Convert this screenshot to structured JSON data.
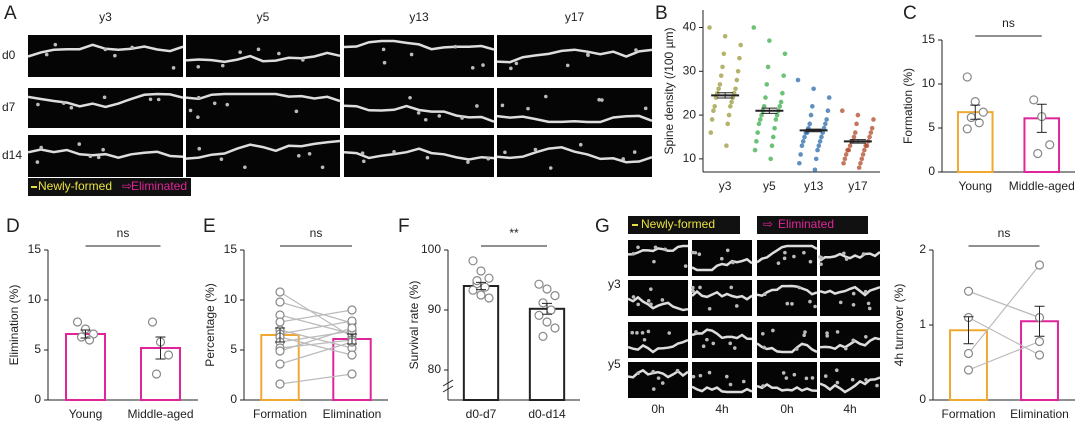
{
  "image_panels": {
    "A": {
      "label": "A",
      "columns": [
        "y3",
        "y5",
        "y13",
        "y17"
      ],
      "rows": [
        "d0",
        "d7",
        "d14"
      ],
      "legend": [
        "Newly-formed",
        "Eliminated"
      ]
    },
    "G": {
      "label": "G",
      "legend": [
        "Newly-formed",
        "Eliminated"
      ],
      "rows": [
        "y3",
        "y5"
      ],
      "columns": [
        "0h",
        "4h",
        "0h",
        "4h"
      ]
    }
  },
  "chart_data": [
    {
      "type": "strip",
      "panel": "B",
      "ylabel": "Spine density (/100 µm)",
      "categories": [
        "y3",
        "y5",
        "y13",
        "y17"
      ],
      "groups": [
        {
          "color": "#9a9a3c",
          "mean": 24.5,
          "error": 0.6,
          "values": [
            40,
            38,
            36,
            34,
            33,
            31,
            30,
            29,
            28,
            27,
            26,
            26,
            25,
            25,
            24,
            24,
            23,
            22,
            22,
            21,
            20,
            19,
            18,
            16,
            13
          ]
        },
        {
          "color": "#3aae4a",
          "mean": 21,
          "error": 0.6,
          "values": [
            40,
            37,
            34,
            31,
            29,
            27,
            25,
            24,
            23,
            22,
            22,
            21,
            21,
            20,
            20,
            19,
            19,
            18,
            17,
            16,
            15,
            14,
            13,
            12,
            10
          ]
        },
        {
          "color": "#2a6aa8",
          "mean": 16.5,
          "error": 0.3,
          "values": [
            28,
            26,
            24,
            22,
            21,
            20,
            19,
            18,
            18,
            17,
            17,
            16,
            16,
            16,
            15,
            15,
            14,
            14,
            13,
            13,
            12,
            11,
            10,
            9,
            7.5
          ]
        },
        {
          "color": "#b04a2a",
          "mean": 14,
          "error": 0.4,
          "values": [
            21,
            20,
            19,
            18,
            17,
            16,
            16,
            15,
            15,
            14,
            14,
            14,
            13,
            13,
            13,
            12,
            12,
            12,
            11,
            11,
            10,
            10,
            9,
            9,
            8
          ]
        }
      ],
      "ylim": [
        7,
        44
      ],
      "yticks": [
        10,
        20,
        30,
        40
      ]
    },
    {
      "type": "bar",
      "panel": "C",
      "ylabel": "Formation (%)",
      "categories": [
        "Young",
        "Middle-aged"
      ],
      "colors": [
        "#f0a830",
        "#e0259a"
      ],
      "values": [
        6.8,
        6.1
      ],
      "errors": [
        0.8,
        1.6
      ],
      "points": [
        [
          10.8,
          8.0,
          6.8,
          6.2,
          5.6,
          4.9
        ],
        [
          8.2,
          6.3,
          3.1,
          2.1
        ]
      ],
      "ylim": [
        0,
        15
      ],
      "yticks": [
        0,
        5,
        10,
        15
      ],
      "annotation": "ns"
    },
    {
      "type": "bar",
      "panel": "D",
      "ylabel": "Elimination (%)",
      "categories": [
        "Young",
        "Middle-aged"
      ],
      "colors": [
        "#e0259a",
        "#e0259a"
      ],
      "values": [
        6.6,
        5.2
      ],
      "errors": [
        0.4,
        1.1
      ],
      "points": [
        [
          7.8,
          7.1,
          6.6,
          6.3,
          6.0
        ],
        [
          7.8,
          5.8,
          4.5,
          2.6
        ]
      ],
      "ylim": [
        0,
        15
      ],
      "yticks": [
        0,
        5,
        10,
        15
      ],
      "annotation": "ns"
    },
    {
      "type": "bar",
      "panel": "E",
      "ylabel": "Percentage (%)",
      "categories": [
        "Formation",
        "Elimination"
      ],
      "colors": [
        "#f0a830",
        "#e0259a"
      ],
      "values": [
        6.5,
        6.1
      ],
      "errors": [
        0.7,
        0.5
      ],
      "paired": true,
      "points": [
        [
          10.8,
          9.8,
          8.5,
          7.8,
          7.0,
          6.6,
          6.3,
          5.8,
          5.2,
          4.9,
          3.6,
          1.6
        ],
        [
          6.3,
          7.7,
          6.6,
          9.0,
          5.2,
          7.9,
          4.5,
          6.9,
          6.0,
          7.2,
          5.8,
          2.6
        ]
      ],
      "ylim": [
        0,
        15
      ],
      "yticks": [
        0,
        5,
        10,
        15
      ],
      "annotation": "ns"
    },
    {
      "type": "bar",
      "panel": "F",
      "ylabel": "Survival rate (%)",
      "categories": [
        "d0-d7",
        "d0-d14"
      ],
      "colors": [
        "#222222",
        "#222222"
      ],
      "values": [
        94,
        90.2
      ],
      "errors": [
        0.6,
        0.9
      ],
      "points": [
        [
          98.2,
          96.5,
          95.3,
          94.4,
          93.8,
          93.3,
          92.5,
          92.0,
          94.9
        ],
        [
          94.3,
          93.5,
          92.4,
          91.2,
          90.0,
          89.1,
          88.0,
          87.0,
          85.6
        ]
      ],
      "ylim": [
        75,
        100
      ],
      "yticks": [
        80,
        90,
        100
      ],
      "axis_break": true,
      "annotation": "**"
    },
    {
      "type": "bar",
      "ylabel": "4h turnover (%)",
      "categories": [
        "Formation",
        "Elimination"
      ],
      "colors": [
        "#f0a830",
        "#e0259a"
      ],
      "values": [
        0.93,
        1.05
      ],
      "errors": [
        0.18,
        0.2
      ],
      "paired": true,
      "points": [
        [
          1.45,
          1.1,
          0.62,
          0.4
        ],
        [
          1.1,
          0.6,
          1.8,
          0.78
        ]
      ],
      "ylim": [
        0,
        2
      ],
      "yticks": [
        0,
        1,
        2
      ],
      "annotation": "ns"
    }
  ]
}
